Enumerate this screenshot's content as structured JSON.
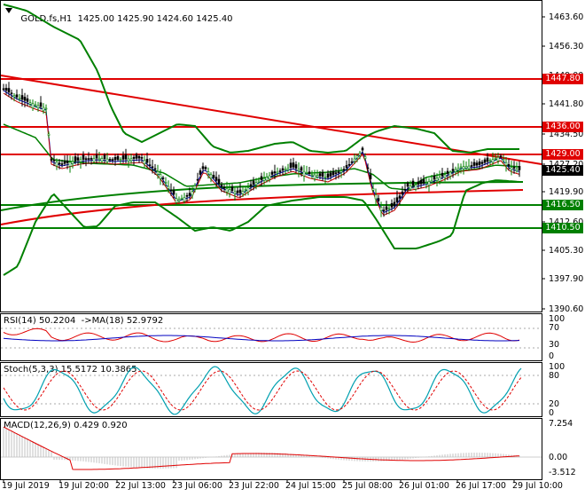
{
  "main": {
    "symbol_tf": "GOLD.fs,H1",
    "ohlc": "1425.00 1425.90 1424.60 1425.40",
    "price_axis": [
      "1463.60",
      "1456.30",
      "1449.00",
      "1441.80",
      "1434.50",
      "1427.20",
      "1419.90",
      "1412.60",
      "1405.30",
      "1397.90",
      "1390.60"
    ],
    "level_badges": [
      {
        "label": "1447.80",
        "color": "#e00000"
      },
      {
        "label": "1436.00",
        "color": "#e00000"
      },
      {
        "label": "1429.00",
        "color": "#e00000"
      },
      {
        "label": "1425.40",
        "color": "#000000"
      },
      {
        "label": "1416.50",
        "color": "#008000"
      },
      {
        "label": "1410.50",
        "color": "#008000"
      }
    ]
  },
  "rsi": {
    "label": "RSI(14) 50.2204  ->MA(18) 52.9792",
    "axis": [
      "100",
      "70",
      "30",
      "0"
    ]
  },
  "stoch": {
    "label": "Stoch(5,3,3) 15.5172 10.3865",
    "axis": [
      "100",
      "80",
      "20",
      "0"
    ]
  },
  "macd": {
    "label": "MACD(12,26,9) 0.429 0.920",
    "axis": [
      "7.254",
      "0.00",
      "-3.512"
    ]
  },
  "time_axis": [
    "19 Jul 2019",
    "19 Jul 20:00",
    "22 Jul 13:00",
    "23 Jul 06:00",
    "23 Jul 22:00",
    "24 Jul 15:00",
    "25 Jul 08:00",
    "26 Jul 01:00",
    "26 Jul 17:00",
    "29 Jul 10:00"
  ],
  "colors": {
    "bull": "#008000",
    "bear": "#000000",
    "resistance": "#e00000",
    "support": "#008000",
    "rsi_line": "#e00000",
    "rsi_ma": "#0000c0",
    "stoch_main": "#00a0b0",
    "stoch_signal": "#e00000",
    "macd_hist": "#c0c0c0",
    "macd_signal": "#e00000"
  }
}
